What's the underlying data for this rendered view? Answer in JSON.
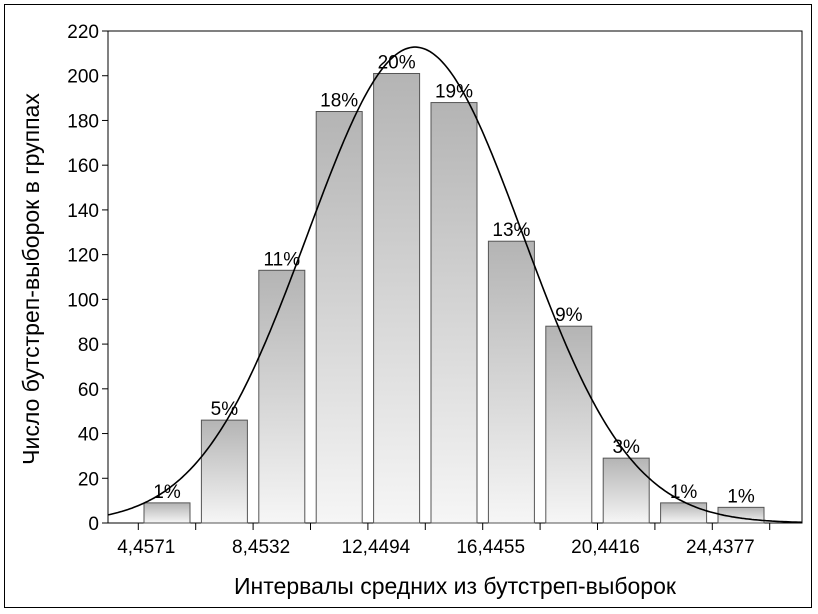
{
  "chart_data": {
    "type": "bar",
    "xlabel": "Интервалы средних из бутстреп-выборок",
    "ylabel": "Число бутстреп-выборок в группах",
    "ylim": [
      0,
      220
    ],
    "yticks": [
      0,
      20,
      40,
      60,
      80,
      100,
      120,
      140,
      160,
      180,
      200,
      220
    ],
    "xtick_labels": [
      "4,4571",
      "8,4532",
      "12,4494",
      "16,4455",
      "20,4416",
      "24,4377"
    ],
    "values": [
      9,
      46,
      113,
      184,
      201,
      188,
      126,
      88,
      29,
      9,
      7
    ],
    "bar_labels": [
      "1%",
      "5%",
      "11%",
      "18%",
      "20%",
      "19%",
      "13%",
      "9%",
      "3%",
      "1%",
      "1%"
    ],
    "fit_curve": "normal",
    "grid": false,
    "colors": {
      "bar_fill_top": "#b4b4b4",
      "bar_fill_bottom": "#f6f6f6",
      "bar_stroke": "#555555",
      "curve": "#000000"
    }
  }
}
